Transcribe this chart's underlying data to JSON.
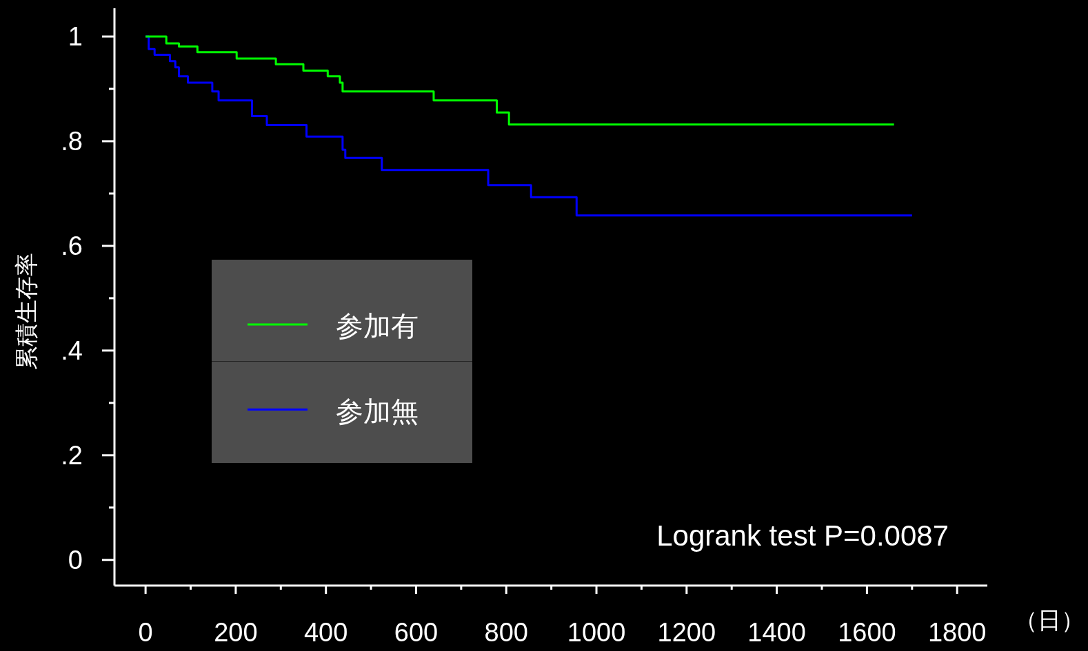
{
  "chart_data": {
    "type": "step",
    "ylabel": "累積生存率",
    "xlabel": "（日）",
    "xlim": [
      -69,
      1867
    ],
    "ylim": [
      -0.049,
      1.054
    ],
    "xticks": [
      0,
      {
        "value": 100,
        "label": null
      },
      200,
      {
        "value": 300,
        "label": null
      },
      400,
      {
        "value": 500,
        "label": null
      },
      600,
      {
        "value": 700,
        "label": null
      },
      800,
      {
        "value": 900,
        "label": null
      },
      1000,
      {
        "value": 1100,
        "label": null
      },
      1200,
      {
        "value": 1300,
        "label": null
      },
      1400,
      {
        "value": 1500,
        "label": null
      },
      1600,
      {
        "value": 1700,
        "label": null
      },
      1800
    ],
    "yticks": [
      0,
      {
        "value": 0.1,
        "label": null
      },
      {
        "value": 0.2,
        "label": ".2"
      },
      {
        "value": 0.3,
        "label": null
      },
      {
        "value": 0.4,
        "label": ".4"
      },
      {
        "value": 0.5,
        "label": null
      },
      {
        "value": 0.6,
        "label": ".6"
      },
      {
        "value": 0.7,
        "label": null
      },
      {
        "value": 0.8,
        "label": ".8"
      },
      {
        "value": 0.9,
        "label": null
      },
      1
    ],
    "series": [
      {
        "name": "参加有",
        "color": "#00ff00",
        "x": [
          0,
          46,
          74,
          115,
          202,
          289,
          350,
          404,
          431,
          437,
          639,
          779,
          806,
          1660
        ],
        "values": [
          1,
          0.987,
          0.981,
          0.97,
          0.958,
          0.947,
          0.935,
          0.924,
          0.912,
          0.895,
          0.878,
          0.855,
          0.832,
          0.832
        ]
      },
      {
        "name": "参加無",
        "color": "#0000ff",
        "x": [
          0,
          7,
          20,
          54,
          66,
          74,
          94,
          148,
          162,
          236,
          269,
          357,
          437,
          443,
          524,
          760,
          855,
          956,
          1700
        ],
        "values": [
          1,
          0.976,
          0.965,
          0.953,
          0.941,
          0.924,
          0.912,
          0.895,
          0.878,
          0.848,
          0.831,
          0.809,
          0.784,
          0.768,
          0.745,
          0.716,
          0.693,
          0.658,
          0.658
        ]
      }
    ],
    "legend": "left",
    "annotations": [
      "Logrank test P=0.0087"
    ]
  }
}
